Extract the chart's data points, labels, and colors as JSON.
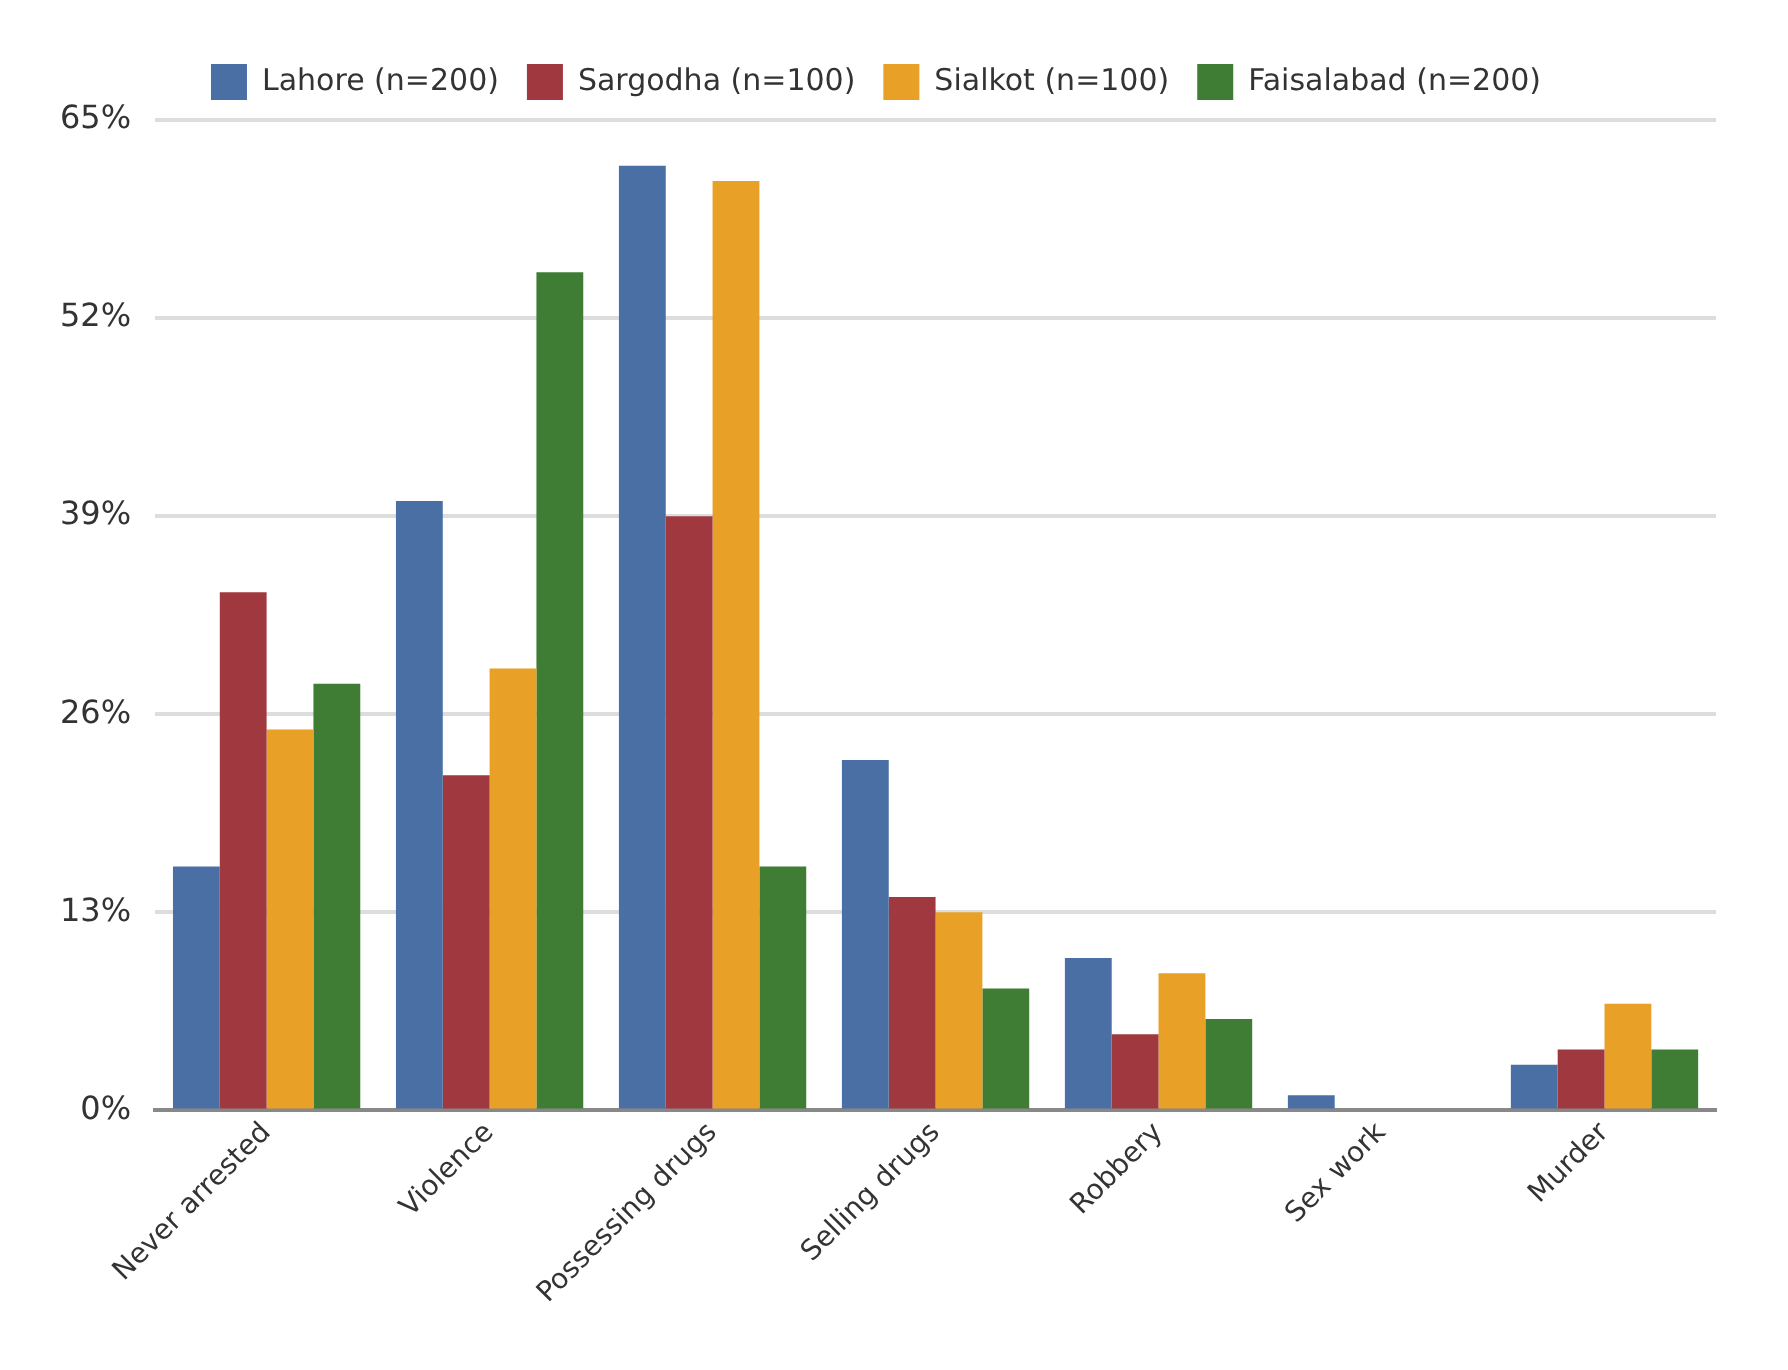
{
  "chart_data": {
    "type": "bar",
    "categories": [
      "Never arrested",
      "Violence",
      "Possessing drugs",
      "Selling drugs",
      "Robbery",
      "Sex work",
      "Murder"
    ],
    "series": [
      {
        "name": "Lahore (n=200)",
        "color": "#4a6fa5",
        "values": [
          16,
          40,
          62,
          23,
          10,
          1,
          3
        ]
      },
      {
        "name": "Sargodha (n=100)",
        "color": "#a0393f",
        "values": [
          34,
          22,
          39,
          14,
          5,
          0,
          4
        ]
      },
      {
        "name": "Sialkot (n=100)",
        "color": "#e8a026",
        "values": [
          25,
          29,
          61,
          13,
          9,
          0,
          7
        ]
      },
      {
        "name": "Faisalabad (n=200)",
        "color": "#3f7d34",
        "values": [
          28,
          55,
          16,
          8,
          6,
          0,
          4
        ]
      }
    ],
    "ylim": [
      0,
      65
    ],
    "yticks": [
      {
        "value": 0,
        "label": "0%"
      },
      {
        "value": 13,
        "label": "13%"
      },
      {
        "value": 26,
        "label": "26%"
      },
      {
        "value": 39,
        "label": "39%"
      },
      {
        "value": 52,
        "label": "52%"
      },
      {
        "value": 65,
        "label": "65%"
      }
    ],
    "grid": "y",
    "legend": "top"
  }
}
